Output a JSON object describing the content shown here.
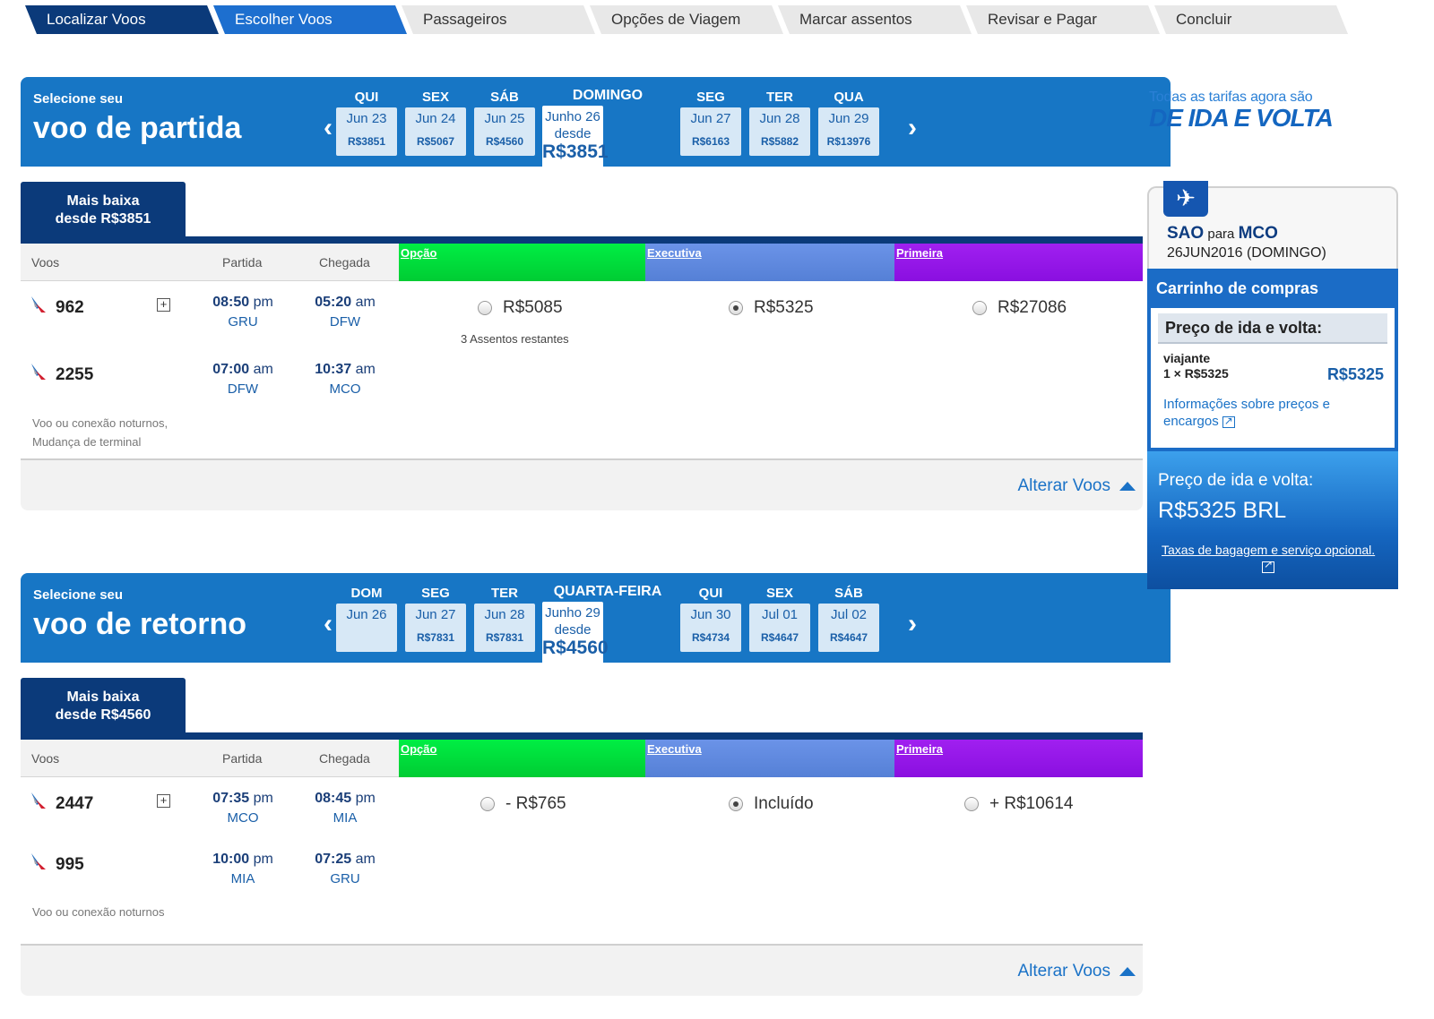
{
  "steps": [
    "Localizar Voos",
    "Escolher Voos",
    "Passageiros",
    "Opções de Viagem",
    "Marcar assentos",
    "Revisar e Pagar",
    "Concluir"
  ],
  "outbound": {
    "kicker": "Selecione seu",
    "title": "voo de partida",
    "dates": [
      {
        "dow": "QUI",
        "date": "Jun 23",
        "price": "R$3851"
      },
      {
        "dow": "SEX",
        "date": "Jun 24",
        "price": "R$5067"
      },
      {
        "dow": "SÁB",
        "date": "Jun 25",
        "price": "R$4560"
      },
      {
        "dow": "DOMINGO",
        "date": "Junho 26",
        "prefix": "desde",
        "price": "R$3851"
      },
      {
        "dow": "SEG",
        "date": "Jun 27",
        "price": "R$6163"
      },
      {
        "dow": "TER",
        "date": "Jun 28",
        "price": "R$5882"
      },
      {
        "dow": "QUA",
        "date": "Jun 29",
        "price": "R$13976"
      }
    ],
    "lowest_line1": "Mais baixa",
    "lowest_line2": "desde R$3851",
    "headers": {
      "flights": "Voos",
      "departure": "Partida",
      "arrival": "Chegada"
    },
    "fare_classes": [
      "Opção",
      "Executiva",
      "Primeira"
    ],
    "segments": [
      {
        "flight": "962",
        "dep_time": "08:50",
        "dep_ampm": "pm",
        "dep_code": "GRU",
        "arr_time": "05:20",
        "arr_ampm": "am",
        "arr_code": "DFW"
      },
      {
        "flight": "2255",
        "dep_time": "07:00",
        "dep_ampm": "am",
        "dep_code": "DFW",
        "arr_time": "10:37",
        "arr_ampm": "am",
        "arr_code": "MCO"
      }
    ],
    "fares": [
      "R$5085",
      "R$5325",
      "R$27086"
    ],
    "seats_left": "3 Assentos restantes",
    "note1": "Voo ou conexão noturnos,",
    "note2": "Mudança de terminal",
    "change": "Alterar Voos"
  },
  "return": {
    "kicker": "Selecione seu",
    "title": "voo de retorno",
    "dates": [
      {
        "dow": "DOM",
        "date": "Jun 26",
        "price": ""
      },
      {
        "dow": "SEG",
        "date": "Jun 27",
        "price": "R$7831"
      },
      {
        "dow": "TER",
        "date": "Jun 28",
        "price": "R$7831"
      },
      {
        "dow": "QUARTA-FEIRA",
        "date": "Junho 29",
        "prefix": "desde",
        "price": "R$4560"
      },
      {
        "dow": "QUI",
        "date": "Jun 30",
        "price": "R$4734"
      },
      {
        "dow": "SEX",
        "date": "Jul 01",
        "price": "R$4647"
      },
      {
        "dow": "SÁB",
        "date": "Jul 02",
        "price": "R$4647"
      }
    ],
    "lowest_line1": "Mais baixa",
    "lowest_line2": "desde R$4560",
    "headers": {
      "flights": "Voos",
      "departure": "Partida",
      "arrival": "Chegada"
    },
    "fare_classes": [
      "Opção",
      "Executiva",
      "Primeira"
    ],
    "segments": [
      {
        "flight": "2447",
        "dep_time": "07:35",
        "dep_ampm": "pm",
        "dep_code": "MCO",
        "arr_time": "08:45",
        "arr_ampm": "pm",
        "arr_code": "MIA"
      },
      {
        "flight": "995",
        "dep_time": "10:00",
        "dep_ampm": "pm",
        "dep_code": "MIA",
        "arr_time": "07:25",
        "arr_ampm": "am",
        "arr_code": "GRU"
      }
    ],
    "fares": [
      "- R$765",
      "Incluído",
      "+ R$10614"
    ],
    "note1": "Voo ou conexão noturnos",
    "change": "Alterar Voos"
  },
  "promo": {
    "line1": "Todas as tarifas agora são",
    "line2": "DE IDA E VOLTA"
  },
  "cart": {
    "origin": "SAO",
    "to": "para",
    "destination": "MCO",
    "date": "26JUN2016 (DOMINGO)",
    "title": "Carrinho de compras",
    "price_label": "Preço de ida e volta:",
    "traveler": "viajante",
    "traveler_qty": "1 × R$5325",
    "traveler_price": "R$5325",
    "info_link": "Informações sobre preços e encargos",
    "total_label": "Preço de ida e volta:",
    "total_value": "R$5325 BRL",
    "fees_link": "Taxas de bagagem e serviço opcional."
  },
  "colors": {
    "header_blue": "#1776c5",
    "navy": "#0b3a7a",
    "economy": "#00dd3c",
    "business": "#5f89e0",
    "first": "#9615ea"
  }
}
